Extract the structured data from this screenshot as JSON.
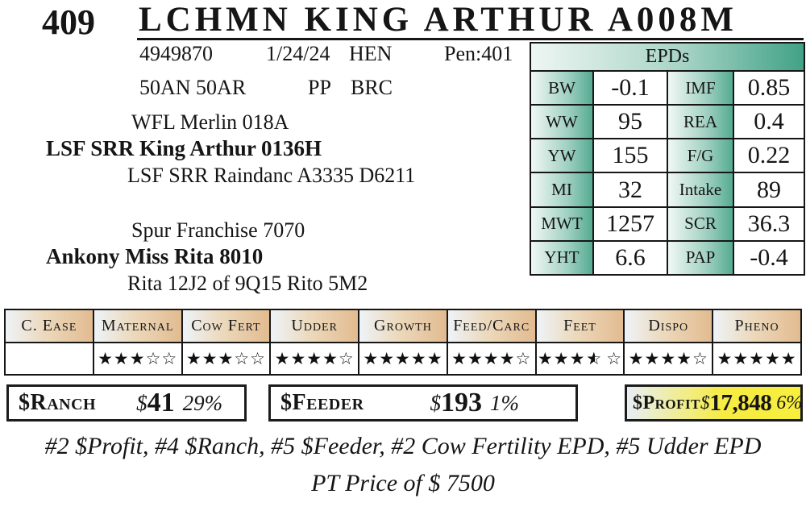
{
  "page": {
    "lot_number": "409",
    "title": "LCHMN KING ARTHUR A008M"
  },
  "registration": {
    "reg_number": "4949870",
    "date": "1/24/24",
    "tattoo": "HEN",
    "pen": "Pen:401",
    "breed_comp": "50AN 50AR",
    "polled": "PP",
    "brand": "BRC"
  },
  "pedigree": {
    "sire_line": {
      "grandsire": "WFL Merlin 018A",
      "sire": "LSF SRR King Arthur 0136H",
      "granddam": "LSF SRR Raindanc A3335 D6211"
    },
    "dam_line": {
      "grandsire": "Spur Franchise 7070",
      "dam": "Ankony Miss Rita 8010",
      "granddam": "Rita 12J2 of 9Q15 Rito 5M2"
    }
  },
  "epds": {
    "title": "EPDs",
    "rows": [
      [
        {
          "label": "BW",
          "value": "-0.1"
        },
        {
          "label": "IMF",
          "value": "0.85"
        }
      ],
      [
        {
          "label": "WW",
          "value": "95"
        },
        {
          "label": "REA",
          "value": "0.4"
        }
      ],
      [
        {
          "label": "YW",
          "value": "155"
        },
        {
          "label": "F/G",
          "value": "0.22"
        }
      ],
      [
        {
          "label": "MI",
          "value": "32"
        },
        {
          "label": "Intake",
          "value": "89"
        }
      ],
      [
        {
          "label": "MWT",
          "value": "1257"
        },
        {
          "label": "SCR",
          "value": "36.3"
        }
      ],
      [
        {
          "label": "YHT",
          "value": "6.6"
        },
        {
          "label": "PAP",
          "value": "-0.4"
        }
      ]
    ]
  },
  "ratings": {
    "glyphs": {
      "full": "★",
      "empty": "☆"
    },
    "columns": [
      {
        "label": "C. Ease",
        "full": 0,
        "half": 0,
        "empty": 0
      },
      {
        "label": "Maternal",
        "full": 3,
        "half": 0,
        "empty": 2
      },
      {
        "label": "Cow Fert",
        "full": 3,
        "half": 0,
        "empty": 2
      },
      {
        "label": "Udder",
        "full": 4,
        "half": 0,
        "empty": 1
      },
      {
        "label": "Growth",
        "full": 5,
        "half": 0,
        "empty": 0
      },
      {
        "label": "Feed/Carc",
        "full": 4,
        "half": 0,
        "empty": 1
      },
      {
        "label": "Feet",
        "full": 3,
        "half": 1,
        "empty": 1
      },
      {
        "label": "Dispo",
        "full": 4,
        "half": 0,
        "empty": 1
      },
      {
        "label": "Pheno",
        "full": 5,
        "half": 0,
        "empty": 0
      }
    ]
  },
  "values": {
    "ranch": {
      "label": "$Ranch",
      "currency": "$",
      "amount": "41",
      "percentile": "29%"
    },
    "feeder": {
      "label": "$Feeder",
      "currency": "$",
      "amount": "193",
      "percentile": "1%"
    },
    "profit": {
      "label": "$Profit",
      "currency": "$",
      "amount": "17,848",
      "percentile": "6%"
    }
  },
  "footer": {
    "rankings": "#2 $Profit, #4 $Ranch, #5 $Feeder, #2 Cow Fertility EPD, #5 Udder EPD",
    "price": "PT Price of $ 7500"
  },
  "colors": {
    "epd_teal": "#41a286",
    "rating_header_tan": "#e2bb90",
    "profit_yellow": "#f8ee3c",
    "pale_blue": "#eef3f8",
    "border_black": "#161616"
  }
}
